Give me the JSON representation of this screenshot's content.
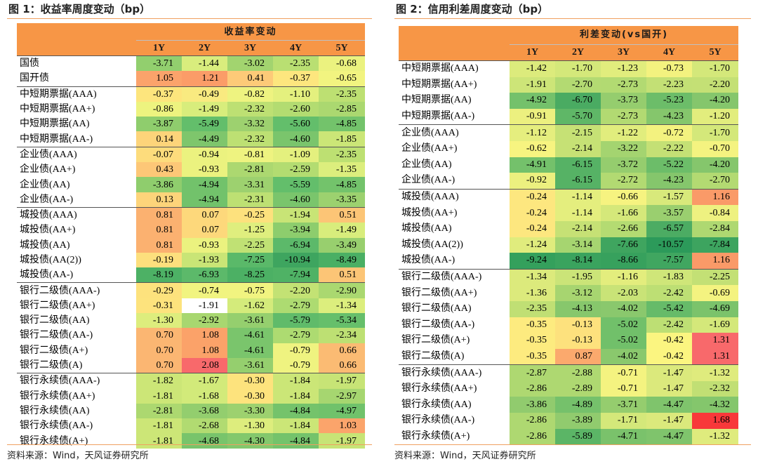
{
  "left": {
    "title": "图 1：收益率周度变动（bp）",
    "super_header": "收益率变动",
    "columns": [
      "1Y",
      "2Y",
      "3Y",
      "4Y",
      "5Y"
    ],
    "rows": [
      {
        "name": "国债",
        "values": [
          "-3.71",
          "-1.44",
          "-3.02",
          "-2.35",
          "-0.68"
        ],
        "colors": [
          "#92cf6e",
          "#d9ed7d",
          "#a2d46f",
          "#b9df72",
          "#ebf27f"
        ],
        "group_start": true
      },
      {
        "name": "国开债",
        "values": [
          "1.05",
          "1.21",
          "0.41",
          "-0.37",
          "-0.65"
        ],
        "colors": [
          "#fba36b",
          "#fb9c68",
          "#fdca78",
          "#fde67e",
          "#f2f480"
        ],
        "group_start": false
      },
      {
        "name": "中短期票据(AAA)",
        "values": [
          "-0.37",
          "-0.49",
          "-0.82",
          "-1.10",
          "-2.35"
        ],
        "colors": [
          "#fde57d",
          "#f9ea80",
          "#eef380",
          "#e4f07e",
          "#bde072"
        ],
        "group_start": true
      },
      {
        "name": "中短期票据(AA+)",
        "values": [
          "-0.86",
          "-1.49",
          "-2.32",
          "-2.60",
          "-2.85"
        ],
        "colors": [
          "#edf37f",
          "#d8ed7c",
          "#bde073",
          "#b3dc71",
          "#abd870"
        ],
        "group_start": false
      },
      {
        "name": "中短期票据(AA)",
        "values": [
          "-3.87",
          "-5.49",
          "-3.32",
          "-5.60",
          "-4.85"
        ],
        "colors": [
          "#8fcd6d",
          "#63be6b",
          "#9dd16f",
          "#63be6b",
          "#73c36b"
        ],
        "group_start": false
      },
      {
        "name": "中短期票据(AA-)",
        "values": [
          "0.14",
          "-4.49",
          "-2.32",
          "-4.60",
          "-1.85"
        ],
        "colors": [
          "#fdd47a",
          "#7ec66c",
          "#bde073",
          "#7ac56c",
          "#cbe677"
        ],
        "group_start": false
      },
      {
        "name": "企业债(AAA)",
        "values": [
          "-0.07",
          "-0.94",
          "-0.81",
          "-1.09",
          "-2.35"
        ],
        "colors": [
          "#fddc7c",
          "#ebf27f",
          "#eef380",
          "#e4f07e",
          "#bde072"
        ],
        "group_start": true
      },
      {
        "name": "企业债(AA+)",
        "values": [
          "0.43",
          "-0.93",
          "-2.81",
          "-2.59",
          "-1.35"
        ],
        "colors": [
          "#fdc777",
          "#ebf27f",
          "#acd870",
          "#b3dc71",
          "#dcee7d"
        ],
        "group_start": false
      },
      {
        "name": "企业债(AA)",
        "values": [
          "-3.86",
          "-4.94",
          "-3.31",
          "-5.59",
          "-4.85"
        ],
        "colors": [
          "#8fcd6d",
          "#72c26b",
          "#9dd16f",
          "#63be6b",
          "#73c36b"
        ],
        "group_start": false
      },
      {
        "name": "企业债(AA-)",
        "values": [
          "0.13",
          "-4.94",
          "-2.31",
          "-4.60",
          "-3.35"
        ],
        "colors": [
          "#fdd47a",
          "#72c26b",
          "#bde073",
          "#7ac56c",
          "#9cd16f"
        ],
        "group_start": false
      },
      {
        "name": "城投债(AAA)",
        "values": [
          "0.81",
          "0.07",
          "-0.25",
          "-1.94",
          "0.51"
        ],
        "colors": [
          "#fbb170",
          "#fdd87b",
          "#fde17d",
          "#c8e476",
          "#fcc576"
        ],
        "group_start": true
      },
      {
        "name": "城投债(AA+)",
        "values": [
          "0.81",
          "0.07",
          "-1.25",
          "-3.94",
          "-1.49"
        ],
        "colors": [
          "#fbb170",
          "#fdd87b",
          "#dfee7e",
          "#8dcd6d",
          "#d8ed7c"
        ],
        "group_start": false
      },
      {
        "name": "城投债(AA)",
        "values": [
          "0.81",
          "-0.93",
          "-2.25",
          "-6.94",
          "-3.49"
        ],
        "colors": [
          "#fbb170",
          "#ebf27f",
          "#c0e174",
          "#5cb96a",
          "#98cf6e"
        ],
        "group_start": false
      },
      {
        "name": "城投债(AA(2))",
        "values": [
          "-0.19",
          "-1.93",
          "-7.25",
          "-10.94",
          "-8.49"
        ],
        "colors": [
          "#fddf7d",
          "#c9e576",
          "#5ab969",
          "#3ea55f",
          "#4aaf64"
        ],
        "group_start": false
      },
      {
        "name": "城投债(AA-)",
        "values": [
          "-8.19",
          "-6.93",
          "-8.25",
          "-7.94",
          "0.51"
        ],
        "colors": [
          "#4db165",
          "#5cb96a",
          "#4cb064",
          "#4fb265",
          "#fcc576"
        ],
        "group_start": false
      },
      {
        "name": "银行二级债(AAA-)",
        "values": [
          "-0.29",
          "-0.74",
          "-0.75",
          "-2.20",
          "-2.90"
        ],
        "colors": [
          "#fde27d",
          "#f1f480",
          "#f1f480",
          "#c3e274",
          "#aad870"
        ],
        "group_start": true
      },
      {
        "name": "银行二级债(AA+)",
        "values": [
          "-0.31",
          "-1.91",
          "-1.62",
          "-2.79",
          "-1.34"
        ],
        "colors": [
          "#fde37d",
          "#caе577",
          "#d4eb7b",
          "#addb71",
          "#dcee7d"
        ],
        "group_start": false
      },
      {
        "name": "银行二级债(AA)",
        "values": [
          "-1.30",
          "-2.92",
          "-3.61",
          "-5.79",
          "-5.34"
        ],
        "colors": [
          "#dded7d",
          "#a8d770",
          "#95cf6e",
          "#60bb6a",
          "#66bf6b"
        ],
        "group_start": false
      },
      {
        "name": "银行二级债(AA-)",
        "values": [
          "0.70",
          "1.08",
          "-4.61",
          "-2.79",
          "-2.34"
        ],
        "colors": [
          "#fbb672",
          "#fba269",
          "#7ac56c",
          "#addb71",
          "#bde073"
        ],
        "group_start": false
      },
      {
        "name": "银行二级债(A+)",
        "values": [
          "0.70",
          "1.08",
          "-4.61",
          "-0.79",
          "0.66"
        ],
        "colors": [
          "#fbb672",
          "#fba269",
          "#7ac56c",
          "#eff380",
          "#fbbb73"
        ],
        "group_start": false
      },
      {
        "name": "银行二级债(A)",
        "values": [
          "0.70",
          "2.08",
          "-3.61",
          "-0.79",
          "0.66"
        ],
        "colors": [
          "#fbb672",
          "#f8696b",
          "#95cf6e",
          "#eff380",
          "#fbbb73"
        ],
        "group_start": false
      },
      {
        "name": "银行永续债(AAA-)",
        "values": [
          "-1.82",
          "-1.67",
          "-0.30",
          "-1.84",
          "-1.97"
        ],
        "colors": [
          "#cce677",
          "#d2ea7a",
          "#fde37d",
          "#cbe677",
          "#c7e476"
        ],
        "group_start": true
      },
      {
        "name": "银行永续债(AA+)",
        "values": [
          "-1.81",
          "-1.68",
          "-0.30",
          "-1.84",
          "-2.97"
        ],
        "colors": [
          "#cce677",
          "#d2ea7a",
          "#fde37d",
          "#cbe677",
          "#a6d670"
        ],
        "group_start": false
      },
      {
        "name": "银行永续债(AA)",
        "values": [
          "-2.81",
          "-3.68",
          "-3.30",
          "-4.84",
          "-4.97"
        ],
        "colors": [
          "#acd870",
          "#93ce6e",
          "#9dd16f",
          "#74c36b",
          "#70c26b"
        ],
        "group_start": false
      },
      {
        "name": "银行永续债(AA-)",
        "values": [
          "-1.81",
          "-2.68",
          "-1.30",
          "-1.84",
          "1.03"
        ],
        "colors": [
          "#cce677",
          "#b1db71",
          "#dded7d",
          "#cbe677",
          "#fba46b"
        ],
        "group_start": false
      },
      {
        "name": "银行永续债(A+)",
        "values": [
          "-1.81",
          "-4.68",
          "-4.30",
          "-4.84",
          "-1.97"
        ],
        "colors": [
          "#cce677",
          "#78c46b",
          "#83c86c",
          "#74c36b",
          "#c7e476"
        ],
        "group_start": false
      }
    ],
    "source": "资料来源：Wind，天风证券研究所"
  },
  "right": {
    "title": "图 2：信用利差周度变动（bp）",
    "super_header": "利差变动(vs国开)",
    "columns": [
      "1Y",
      "2Y",
      "3Y",
      "4Y",
      "5Y"
    ],
    "rows": [
      {
        "name": "中短期票据(AAA)",
        "values": [
          "-1.42",
          "-1.70",
          "-1.23",
          "-0.73",
          "-1.70"
        ],
        "colors": [
          "#dceb7c",
          "#d4e87a",
          "#e1ed7d",
          "#f3f27f",
          "#d4e87a"
        ],
        "group_start": true
      },
      {
        "name": "中短期票据(AA+)",
        "values": [
          "-1.91",
          "-2.70",
          "-2.73",
          "-2.23",
          "-2.20"
        ],
        "colors": [
          "#cde578",
          "#b3da72",
          "#b2da72",
          "#c3e075",
          "#c4e075"
        ],
        "group_start": false
      },
      {
        "name": "中短期票据(AA)",
        "values": [
          "-4.92",
          "-6.70",
          "-3.73",
          "-5.23",
          "-4.20"
        ],
        "colors": [
          "#74c16b",
          "#4aab62",
          "#95cd6e",
          "#6cbd69",
          "#85c66c"
        ],
        "group_start": false
      },
      {
        "name": "中短期票据(AA-)",
        "values": [
          "-0.91",
          "-5.70",
          "-2.73",
          "-4.23",
          "-1.20"
        ],
        "colors": [
          "#ecf07f",
          "#5fb767",
          "#b2da72",
          "#85c66c",
          "#e2ed7d"
        ],
        "group_start": false
      },
      {
        "name": "企业债(AAA)",
        "values": [
          "-1.12",
          "-2.15",
          "-1.22",
          "-0.72",
          "-1.70"
        ],
        "colors": [
          "#e5ee7e",
          "#c6e175",
          "#e1ed7d",
          "#f3f27f",
          "#d4e87a"
        ],
        "group_start": true
      },
      {
        "name": "企业债(AA+)",
        "values": [
          "-0.62",
          "-2.14",
          "-3.22",
          "-2.22",
          "-0.70"
        ],
        "colors": [
          "#f7f480",
          "#c6e175",
          "#a4d470",
          "#c4e075",
          "#f4f380"
        ],
        "group_start": false
      },
      {
        "name": "企业债(AA)",
        "values": [
          "-4.91",
          "-6.15",
          "-3.72",
          "-5.22",
          "-4.20"
        ],
        "colors": [
          "#74c16b",
          "#56b265",
          "#95cd6e",
          "#6cbd69",
          "#85c66c"
        ],
        "group_start": false
      },
      {
        "name": "企业债(AA-)",
        "values": [
          "-0.92",
          "-6.15",
          "-2.72",
          "-4.23",
          "-2.70"
        ],
        "colors": [
          "#ecf07f",
          "#56b265",
          "#b2da72",
          "#85c66c",
          "#b3da72"
        ],
        "group_start": false
      },
      {
        "name": "城投债(AAA)",
        "values": [
          "-0.24",
          "-1.14",
          "-0.66",
          "-1.57",
          "1.16"
        ],
        "colors": [
          "#fde77f",
          "#e4ee7e",
          "#f6f380",
          "#d8e97b",
          "#fa9a68"
        ],
        "group_start": true
      },
      {
        "name": "城投债(AA+)",
        "values": [
          "-0.24",
          "-1.14",
          "-1.66",
          "-3.57",
          "-0.84"
        ],
        "colors": [
          "#fde77f",
          "#e4ee7e",
          "#d5e87a",
          "#9acf6f",
          "#eef180"
        ],
        "group_start": false
      },
      {
        "name": "城投债(AA)",
        "values": [
          "-0.24",
          "-2.14",
          "-2.66",
          "-6.57",
          "-2.84"
        ],
        "colors": [
          "#fde77f",
          "#c6e175",
          "#b4db72",
          "#4cac63",
          "#aed871"
        ],
        "group_start": false
      },
      {
        "name": "城投债(AA(2))",
        "values": [
          "-1.24",
          "-3.14",
          "-7.66",
          "-10.57",
          "-7.84"
        ],
        "colors": [
          "#e0ec7d",
          "#a6d570",
          "#3fa55f",
          "#2c9a5a",
          "#3da45f"
        ],
        "group_start": false
      },
      {
        "name": "城投债(AA-)",
        "values": [
          "-9.24",
          "-8.14",
          "-8.66",
          "-7.57",
          "1.16"
        ],
        "colors": [
          "#34a05c",
          "#3aa35e",
          "#37a15d",
          "#40a660",
          "#fa9a68"
        ],
        "group_start": false
      },
      {
        "name": "银行二级债(AAA-)",
        "values": [
          "-1.34",
          "-1.95",
          "-1.16",
          "-1.83",
          "-2.25"
        ],
        "colors": [
          "#dcea7c",
          "#cbe478",
          "#e3ed7d",
          "#cfe679",
          "#c3e075"
        ],
        "group_start": true
      },
      {
        "name": "银行二级债(AA+)",
        "values": [
          "-1.36",
          "-3.12",
          "-2.03",
          "-2.42",
          "-0.69"
        ],
        "colors": [
          "#dcea7c",
          "#a7d570",
          "#c9e377",
          "#bddf74",
          "#f4f380"
        ],
        "group_start": false
      },
      {
        "name": "银行二级债(AA)",
        "values": [
          "-2.35",
          "-4.13",
          "-4.02",
          "-5.42",
          "-4.69"
        ],
        "colors": [
          "#c0df74",
          "#87c76c",
          "#8ac86d",
          "#66bb69",
          "#7bc36b"
        ],
        "group_start": false
      },
      {
        "name": "银行二级债(AA-)",
        "values": [
          "-0.35",
          "-0.13",
          "-5.02",
          "-2.42",
          "-1.69"
        ],
        "colors": [
          "#fdeb7f",
          "#fde17d",
          "#71c06a",
          "#bddf74",
          "#d4e87a"
        ],
        "group_start": false
      },
      {
        "name": "银行二级债(A+)",
        "values": [
          "-0.35",
          "-0.13",
          "-5.02",
          "-0.42",
          "1.31"
        ],
        "colors": [
          "#fdeb7f",
          "#fde17d",
          "#71c06a",
          "#fbf580",
          "#f8696b"
        ],
        "group_start": false
      },
      {
        "name": "银行二级债(A)",
        "values": [
          "-0.35",
          "0.87",
          "-4.02",
          "-0.42",
          "1.31"
        ],
        "colors": [
          "#fdeb7f",
          "#fba96d",
          "#8ac86d",
          "#fbf580",
          "#f8696b"
        ],
        "group_start": false
      },
      {
        "name": "银行永续债(AAA-)",
        "values": [
          "-2.87",
          "-2.88",
          "-0.71",
          "-1.47",
          "-1.32"
        ],
        "colors": [
          "#aed871",
          "#aed871",
          "#f4f380",
          "#dbe97c",
          "#dfeb7d"
        ],
        "group_start": true
      },
      {
        "name": "银行永续债(AA+)",
        "values": [
          "-2.86",
          "-2.89",
          "-0.71",
          "-1.47",
          "-2.32"
        ],
        "colors": [
          "#aed871",
          "#aed871",
          "#f4f380",
          "#dbe97c",
          "#c1df74"
        ],
        "group_start": false
      },
      {
        "name": "银行永续债(AA)",
        "values": [
          "-3.86",
          "-4.89",
          "-3.71",
          "-4.47",
          "-4.32"
        ],
        "colors": [
          "#91cb6e",
          "#75c16b",
          "#95cd6e",
          "#7fc46c",
          "#84c66c"
        ],
        "group_start": false
      },
      {
        "name": "银行永续债(AA-)",
        "values": [
          "-2.86",
          "-3.89",
          "-1.71",
          "-1.47",
          "1.68"
        ],
        "colors": [
          "#aed871",
          "#91cb6e",
          "#d4e87a",
          "#dbe97c",
          "#f8383a"
        ],
        "group_start": false
      },
      {
        "name": "银行永续债(A+)",
        "values": [
          "-2.86",
          "-5.89",
          "-4.71",
          "-4.47",
          "-1.32"
        ],
        "colors": [
          "#aed871",
          "#5bb566",
          "#7ac26b",
          "#7fc46c",
          "#dfeb7d"
        ],
        "group_start": false
      }
    ],
    "source": "资料来源：Wind，天风证券研究所"
  }
}
